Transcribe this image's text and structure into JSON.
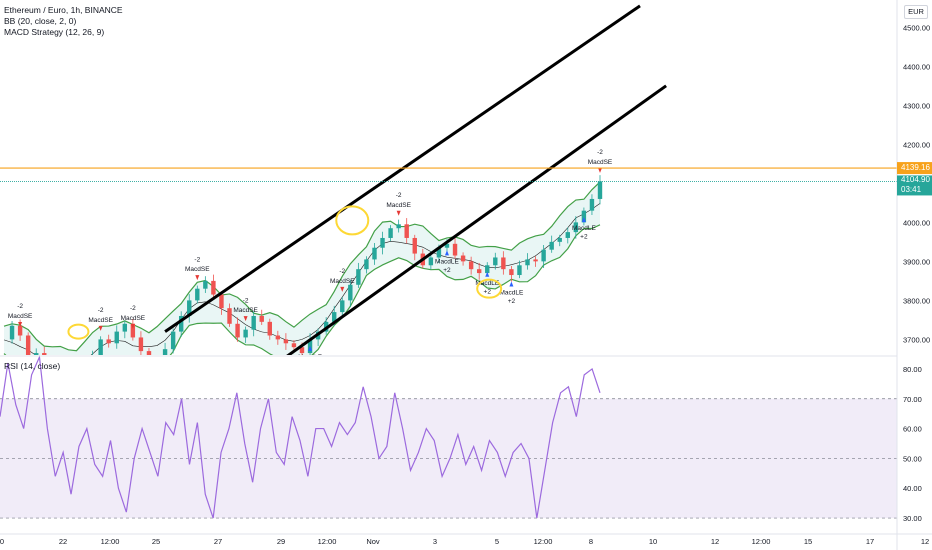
{
  "header": {
    "symbol_line": "Ethereum / Euro, 1h, BINANCE",
    "indicator_1": "BB (20, close, 2, 0)",
    "indicator_2": "MACD Strategy (12, 26, 9)",
    "currency": "EUR"
  },
  "rsi_panel": {
    "title": "RSI (14, close)"
  },
  "price_badges": {
    "resistance_label": "4139.16",
    "last_price_label": "4104.90",
    "countdown_label": "03:41"
  },
  "colors": {
    "resistance_line": "#f7a21b",
    "last_price": "#26a69a",
    "bb_band": "#43a047",
    "bb_fill": "#e0f2f1",
    "rsi_line": "#9c6ade",
    "rsi_fill": "#ede7f6",
    "candle_up": "#26a69a",
    "candle_down": "#ef5350",
    "macd_signal_up": "#2962ff",
    "macd_signal_down": "#e53935",
    "highlight_circle": "#fdd835",
    "channel_line": "#000000"
  },
  "chart_data": [
    {
      "type": "line",
      "title": "Ethereum / Euro, 1h, BINANCE",
      "x_tick_labels": [
        "0",
        "22",
        "12:00",
        "25",
        "27",
        "29",
        "12:00",
        "Nov",
        "3",
        "5",
        "12:00",
        "8",
        "10",
        "12",
        "12:00",
        "15",
        "17",
        "12"
      ],
      "y_tick_labels": [
        "3700.00",
        "3800.00",
        "3900.00",
        "4000.00",
        "4100.00",
        "4200.00",
        "4300.00",
        "4400.00",
        "4500.00"
      ],
      "ylim": [
        3660,
        4570
      ],
      "horizontal_lines": [
        {
          "label": "4139.16",
          "value": 4139.16
        },
        {
          "label": "4104.90",
          "value": 4104.9
        }
      ],
      "series": [
        {
          "values": [
            3700,
            3735,
            3710,
            3650,
            3665,
            3630,
            3620,
            3600,
            3610,
            3625,
            3640,
            3655,
            3700,
            3690,
            3720,
            3740,
            3705,
            3670,
            3640,
            3620,
            3675,
            3720,
            3760,
            3800,
            3830,
            3850,
            3815,
            3780,
            3740,
            3705,
            3725,
            3760,
            3745,
            3710,
            3700,
            3690,
            3680,
            3665,
            3700,
            3720,
            3745,
            3770,
            3800,
            3840,
            3880,
            3905,
            3935,
            3960,
            3985,
            3995,
            3960,
            3920,
            3890,
            3910,
            3935,
            3945,
            3915,
            3900,
            3880,
            3870,
            3890,
            3910,
            3880,
            3865,
            3890,
            3905,
            3900,
            3930,
            3950,
            3960,
            3975,
            4000,
            4030,
            4060,
            4105
          ]
        }
      ],
      "channel_lines": [
        {
          "from": {
            "x_index": 20,
            "price": 3720
          },
          "to": {
            "x_index": 74,
            "price": 4555
          }
        },
        {
          "from": {
            "x_index": 34,
            "price": 3640
          },
          "to": {
            "x_index": 76,
            "price": 4350
          }
        }
      ],
      "annotations": [
        "MacdSE",
        "MacdSE",
        "MacdSE",
        "MacdSE",
        "MacdSE",
        "MacdSE",
        "MacdSE",
        "MacdSE",
        "MacdLE",
        "MacdLE",
        "MacdLE",
        "MacdLE",
        "MacdLE",
        "-2",
        "-2",
        "-2",
        "-2",
        "-2",
        "-2",
        "-2",
        "-2",
        "+2",
        "+2",
        "+2",
        "+2",
        "+2"
      ]
    },
    {
      "type": "line",
      "title": "RSI (14, close)",
      "y_tick_labels": [
        "30.00",
        "40.00",
        "50.00",
        "60.00",
        "70.00",
        "80.00"
      ],
      "ylim": [
        26,
        84
      ],
      "levels": [
        70,
        50,
        30
      ],
      "series": [
        {
          "values": [
            64,
            82,
            68,
            60,
            78,
            84,
            60,
            44,
            52,
            38,
            54,
            60,
            48,
            44,
            56,
            40,
            32,
            50,
            60,
            52,
            44,
            62,
            58,
            70,
            48,
            62,
            38,
            30,
            52,
            60,
            72,
            55,
            42,
            60,
            70,
            52,
            48,
            64,
            56,
            44,
            60,
            60,
            54,
            62,
            58,
            62,
            74,
            64,
            50,
            54,
            72,
            60,
            46,
            52,
            60,
            56,
            44,
            50,
            58,
            48,
            54,
            46,
            56,
            52,
            44,
            52,
            55,
            50,
            30,
            46,
            62,
            72,
            74,
            64,
            78,
            80,
            72
          ]
        }
      ]
    }
  ]
}
